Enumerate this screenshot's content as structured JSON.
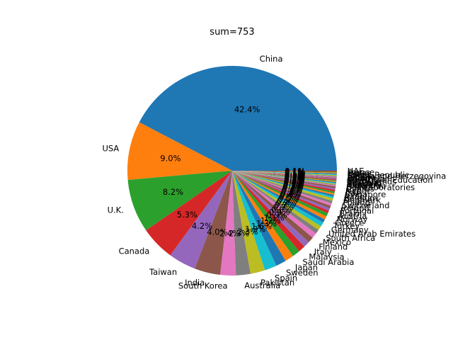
{
  "chart_data": {
    "type": "pie",
    "title": "sum=753",
    "counter_clockwise": true,
    "start_angle": 0,
    "slices": [
      {
        "label": "China",
        "value": 319
      },
      {
        "label": "USA",
        "value": 68
      },
      {
        "label": "U.K.",
        "value": 62
      },
      {
        "label": "Canada",
        "value": 40
      },
      {
        "label": "Taiwan",
        "value": 32
      },
      {
        "label": "India",
        "value": 30
      },
      {
        "label": "South Korea",
        "value": 18
      },
      {
        "label": "Australia",
        "value": 17
      },
      {
        "label": "Pakistan",
        "value": 17
      },
      {
        "label": "Spain",
        "value": 14
      },
      {
        "label": "Sweden",
        "value": 12
      },
      {
        "label": "Japan",
        "value": 10
      },
      {
        "label": "Saudi Arabia",
        "value": 9
      },
      {
        "label": "Malaysia",
        "value": 8
      },
      {
        "label": "Italy",
        "value": 7
      },
      {
        "label": "Finland",
        "value": 7
      },
      {
        "label": "Mexico",
        "value": 6
      },
      {
        "label": "South Africa",
        "value": 5
      },
      {
        "label": "United Arab Emirates",
        "value": 5
      },
      {
        "label": "Germany",
        "value": 5
      },
      {
        "label": "Turkey",
        "value": 4
      },
      {
        "label": "Greece",
        "value": 4
      },
      {
        "label": "Norway",
        "value": 4
      },
      {
        "label": "Austria",
        "value": 3
      },
      {
        "label": "Brazil",
        "value": 3
      },
      {
        "label": "Portugal",
        "value": 3
      },
      {
        "label": "Ireland",
        "value": 3
      },
      {
        "label": "Switzerland",
        "value": 3
      },
      {
        "label": "Poland",
        "value": 3
      },
      {
        "label": "Denmark",
        "value": 2
      },
      {
        "label": "Belgium",
        "value": 2
      },
      {
        "label": "Israel",
        "value": 2
      },
      {
        "label": "Singapore",
        "value": 2
      },
      {
        "label": "Iran",
        "value": 2
      },
      {
        "label": "Nepal",
        "value": 2
      },
      {
        "label": "Cyprus",
        "value": 2
      },
      {
        "label": "Bell Laboratories",
        "value": 1
      },
      {
        "label": "Chile",
        "value": 1
      },
      {
        "label": "Argentina",
        "value": 1
      },
      {
        "label": "Hungary",
        "value": 1
      },
      {
        "label": "Romania",
        "value": 1
      },
      {
        "label": "Thailand",
        "value": 1
      },
      {
        "label": "Netherlands",
        "value": 1
      },
      {
        "label": "Egypt",
        "value": 1
      },
      {
        "label": "Ministry of Education",
        "value": 1
      },
      {
        "label": "Colombia",
        "value": 1
      },
      {
        "label": "Jordan",
        "value": 1
      },
      {
        "label": "Algeria",
        "value": 1
      },
      {
        "label": "Bosnia and Herzegovina",
        "value": 1
      },
      {
        "label": "Czech Republic",
        "value": 1
      },
      {
        "label": "Korea",
        "value": 1
      },
      {
        "label": "Qatar",
        "value": 1
      },
      {
        "label": "France",
        "value": 1
      },
      {
        "label": "UAE",
        "value": 1
      }
    ]
  },
  "colors": [
    "#1f77b4",
    "#ff7f0e",
    "#2ca02c",
    "#d62728",
    "#9467bd",
    "#8c564b",
    "#e377c2",
    "#7f7f7f",
    "#bcbd22",
    "#17becf"
  ]
}
